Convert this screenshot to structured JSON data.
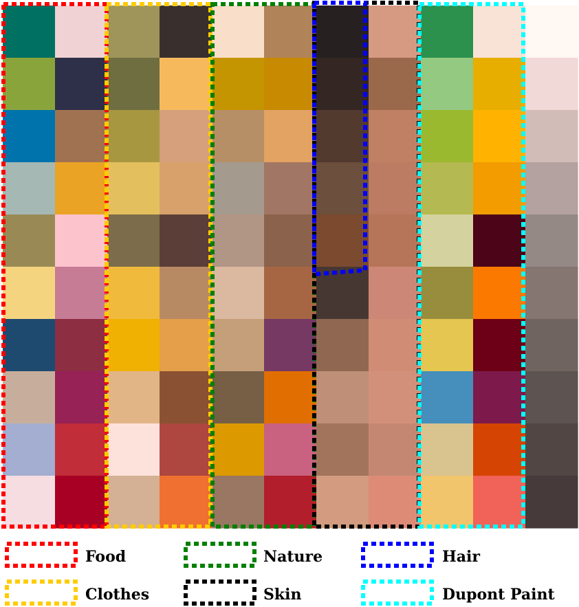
{
  "grid": {
    "rows": 10,
    "cols": 11,
    "colors": [
      [
        "#007063",
        "#f0d2d4",
        "#9f955a",
        "#39302e",
        "#f9dfc9",
        "#b08359",
        "#272020",
        "#d69a82",
        "#2c914d",
        "#f9e2d6",
        "#fff8f3"
      ],
      [
        "#8aa43c",
        "#2e2f48",
        "#6f6e41",
        "#f6ba5d",
        "#c59401",
        "#c78a00",
        "#332623",
        "#9a684b",
        "#93c981",
        "#e7ae00",
        "#f0d9d6"
      ],
      [
        "#0073ad",
        "#a17252",
        "#a79740",
        "#d5a07b",
        "#b68f67",
        "#e2a363",
        "#523a2f",
        "#c08063",
        "#9bb92f",
        "#ffb300",
        "#d2bcb7"
      ],
      [
        "#a5b8b4",
        "#eba325",
        "#e4bf5e",
        "#d8a16b",
        "#a59a8e",
        "#a27664",
        "#6c4f3c",
        "#bc7c63",
        "#b5b952",
        "#f29c00",
        "#b3a29f"
      ],
      [
        "#998a55",
        "#fdc3cd",
        "#7c6c4b",
        "#5b3e38",
        "#b19585",
        "#8b624b",
        "#7b4a2f",
        "#b67559",
        "#d4d39f",
        "#4c0419",
        "#958985"
      ],
      [
        "#f5d47f",
        "#c77c96",
        "#f0bb3d",
        "#b88a64",
        "#dbb8a0",
        "#a66644",
        "#473732",
        "#cd8776",
        "#988d3d",
        "#fc7900",
        "#857672"
      ],
      [
        "#1e4a70",
        "#8d2e43",
        "#f0b103",
        "#e59e4a",
        "#c59e7a",
        "#753963",
        "#906852",
        "#d18c75",
        "#e4c650",
        "#6d0016",
        "#706461"
      ],
      [
        "#c7ae9c",
        "#962256",
        "#e1b586",
        "#8a5233",
        "#765f45",
        "#e06e00",
        "#c08f77",
        "#d2907a",
        "#468ebb",
        "#7d1a4b",
        "#5d5350"
      ],
      [
        "#a3aed0",
        "#c12d38",
        "#fce2db",
        "#ad473f",
        "#dd9900",
        "#c96180",
        "#a3745c",
        "#c48872",
        "#d9c48f",
        "#d54403",
        "#524644"
      ],
      [
        "#f5dde1",
        "#a80024",
        "#d4b194",
        "#ef7030",
        "#997762",
        "#b21e2c",
        "#d39b7f",
        "#dd8b77",
        "#f1c56c",
        "#f16258",
        "#463b3a"
      ]
    ]
  },
  "regions": [
    {
      "name": "Food",
      "color": "#ff0000"
    },
    {
      "name": "Clothes",
      "color": "#ffcc00"
    },
    {
      "name": "Nature",
      "color": "#008000"
    },
    {
      "name": "Skin",
      "color": "#000000"
    },
    {
      "name": "Hair",
      "color": "#0000ff"
    },
    {
      "name": "Dupont Paint",
      "color": "#00ffff"
    }
  ],
  "legend": [
    {
      "key": "Food",
      "label": "Food",
      "color": "#ff0000"
    },
    {
      "key": "Nature",
      "label": "Nature",
      "color": "#008000"
    },
    {
      "key": "Hair",
      "label": "Hair",
      "color": "#0000ff"
    },
    {
      "key": "Clothes",
      "label": "Clothes",
      "color": "#ffcc00"
    },
    {
      "key": "Skin",
      "label": "Skin",
      "color": "#000000"
    },
    {
      "key": "Dupont Paint",
      "label": "Dupont Paint",
      "color": "#00ffff"
    }
  ]
}
